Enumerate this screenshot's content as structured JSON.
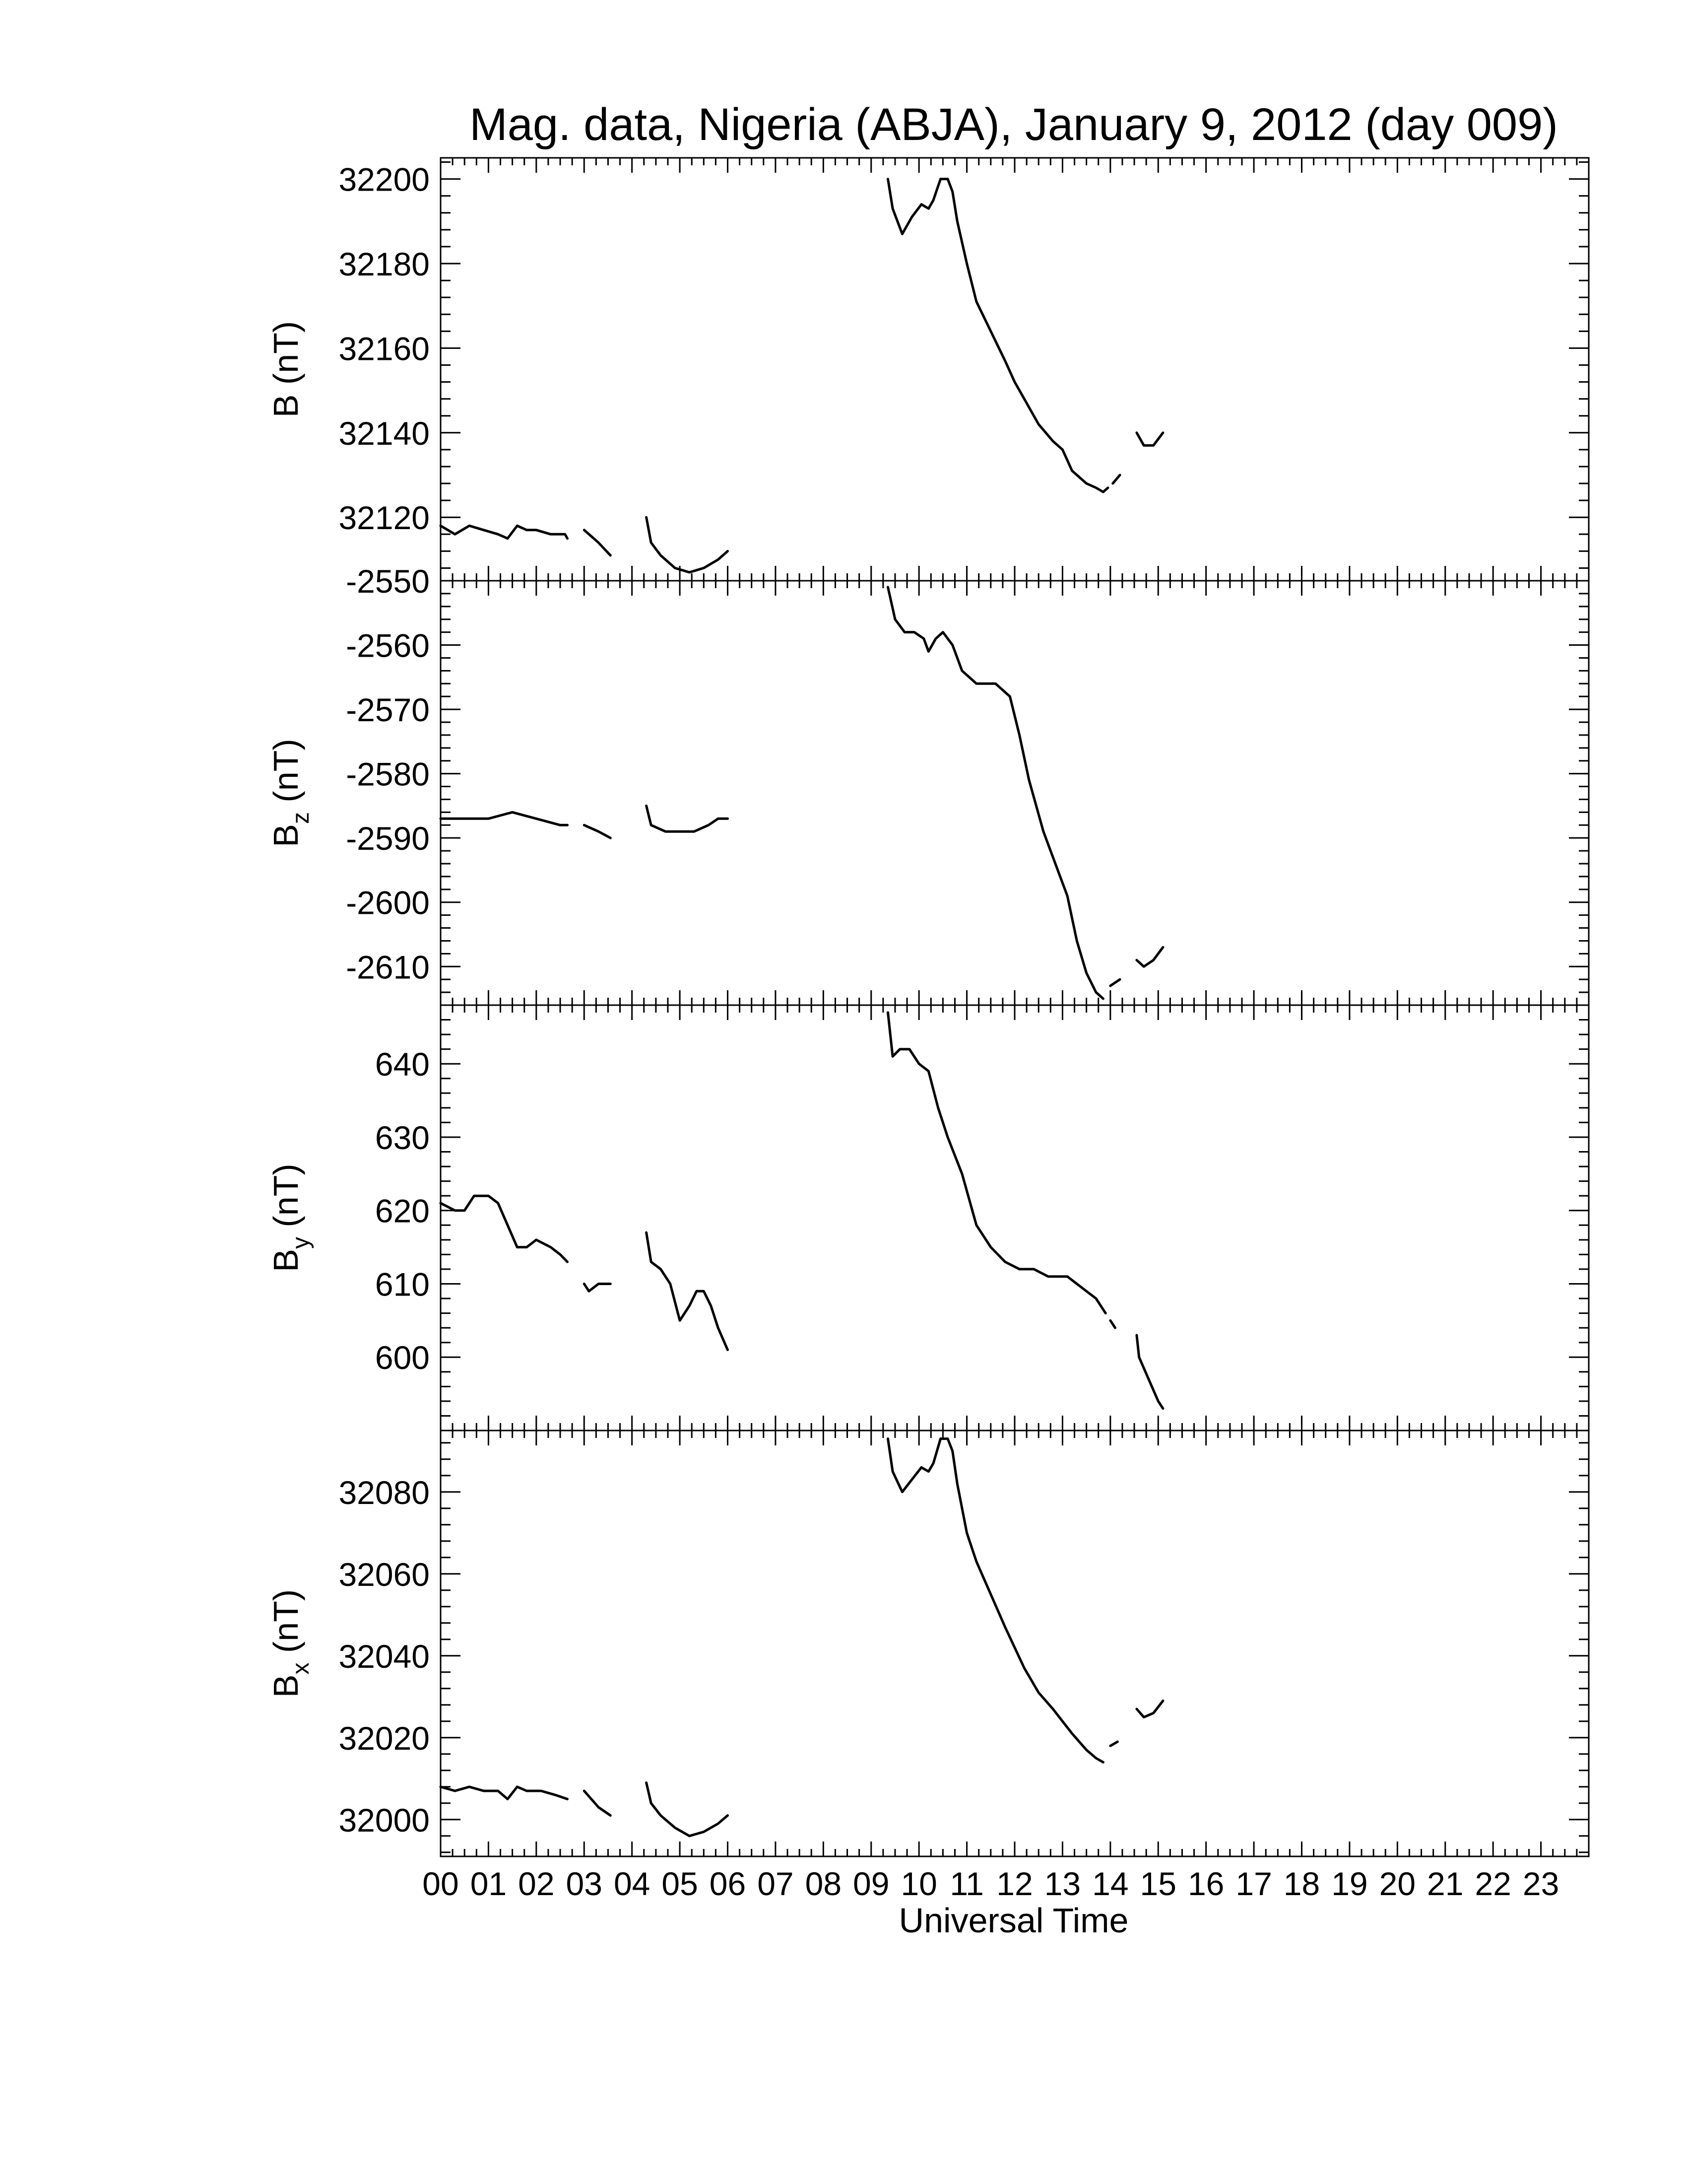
{
  "chart_data": {
    "type": "line",
    "title": "Mag. data, Nigeria (ABJA), January 9, 2012 (day 009)",
    "xlabel": "Universal Time",
    "xlim": [
      0,
      24
    ],
    "x_tick_labels": [
      "00",
      "01",
      "02",
      "03",
      "04",
      "05",
      "06",
      "07",
      "08",
      "09",
      "10",
      "11",
      "12",
      "13",
      "14",
      "15",
      "16",
      "17",
      "18",
      "19",
      "20",
      "21",
      "22",
      "23"
    ],
    "panels": [
      {
        "ylabel_main": "B",
        "ylabel_sub": "",
        "ylabel_unit": " (nT)",
        "ylim": [
          32105,
          32205
        ],
        "yticks": [
          32120,
          32140,
          32160,
          32180,
          32200
        ],
        "y_tick_labels": [
          "32120",
          "32140",
          "32160",
          "32180",
          "32200"
        ],
        "segments": [
          [
            [
              0.0,
              32118
            ],
            [
              0.3,
              32116
            ],
            [
              0.6,
              32118
            ],
            [
              0.9,
              32117
            ],
            [
              1.2,
              32116
            ],
            [
              1.4,
              32115
            ],
            [
              1.6,
              32118
            ],
            [
              1.8,
              32117
            ],
            [
              2.0,
              32117
            ],
            [
              2.3,
              32116
            ],
            [
              2.6,
              32116
            ],
            [
              2.65,
              32115
            ]
          ],
          [
            [
              3.0,
              32117
            ],
            [
              3.3,
              32114
            ],
            [
              3.55,
              32111
            ]
          ],
          [
            [
              4.3,
              32120
            ],
            [
              4.4,
              32114
            ],
            [
              4.6,
              32111
            ],
            [
              4.9,
              32108
            ],
            [
              5.2,
              32107
            ],
            [
              5.5,
              32108
            ],
            [
              5.8,
              32110
            ],
            [
              6.0,
              32112
            ]
          ],
          [
            [
              9.35,
              32200
            ],
            [
              9.45,
              32193
            ],
            [
              9.65,
              32187
            ],
            [
              9.85,
              32191
            ],
            [
              10.05,
              32194
            ],
            [
              10.2,
              32193
            ],
            [
              10.3,
              32195
            ],
            [
              10.45,
              32200
            ],
            [
              10.6,
              32200
            ],
            [
              10.7,
              32197
            ],
            [
              10.8,
              32190
            ],
            [
              11.0,
              32180
            ],
            [
              11.2,
              32171
            ],
            [
              11.5,
              32164
            ],
            [
              11.8,
              32157
            ],
            [
              12.0,
              32152
            ],
            [
              12.2,
              32148
            ],
            [
              12.5,
              32142
            ],
            [
              12.8,
              32138
            ],
            [
              13.0,
              32136
            ],
            [
              13.2,
              32131
            ],
            [
              13.5,
              32128
            ],
            [
              13.7,
              32127
            ],
            [
              13.85,
              32126
            ],
            [
              13.95,
              32127
            ]
          ],
          [
            [
              14.05,
              32128
            ],
            [
              14.2,
              32130
            ]
          ],
          [
            [
              14.55,
              32140
            ],
            [
              14.7,
              32137
            ],
            [
              14.9,
              32137
            ],
            [
              15.1,
              32140
            ]
          ]
        ]
      },
      {
        "ylabel_main": "B",
        "ylabel_sub": "z",
        "ylabel_unit": " (nT)",
        "ylim": [
          -2616,
          -2550
        ],
        "yticks": [
          -2550,
          -2560,
          -2570,
          -2580,
          -2590,
          -2600,
          -2610
        ],
        "y_tick_labels": [
          "-2550",
          "-2560",
          "-2570",
          "-2580",
          "-2590",
          "-2600",
          "-2610"
        ],
        "segments": [
          [
            [
              0.0,
              -2587
            ],
            [
              0.5,
              -2587
            ],
            [
              1.0,
              -2587
            ],
            [
              1.5,
              -2586
            ],
            [
              2.0,
              -2587
            ],
            [
              2.5,
              -2588
            ],
            [
              2.65,
              -2588
            ]
          ],
          [
            [
              3.0,
              -2588
            ],
            [
              3.3,
              -2589
            ],
            [
              3.55,
              -2590
            ]
          ],
          [
            [
              4.3,
              -2585
            ],
            [
              4.4,
              -2588
            ],
            [
              4.7,
              -2589
            ],
            [
              5.0,
              -2589
            ],
            [
              5.3,
              -2589
            ],
            [
              5.6,
              -2588
            ],
            [
              5.8,
              -2587
            ],
            [
              6.0,
              -2587
            ]
          ],
          [
            [
              9.35,
              -2551
            ],
            [
              9.5,
              -2556
            ],
            [
              9.7,
              -2558
            ],
            [
              9.9,
              -2558
            ],
            [
              10.1,
              -2559
            ],
            [
              10.2,
              -2561
            ],
            [
              10.35,
              -2559
            ],
            [
              10.5,
              -2558
            ],
            [
              10.7,
              -2560
            ],
            [
              10.9,
              -2564
            ],
            [
              11.2,
              -2566
            ],
            [
              11.6,
              -2566
            ],
            [
              11.9,
              -2568
            ],
            [
              12.1,
              -2574
            ],
            [
              12.3,
              -2581
            ],
            [
              12.6,
              -2589
            ],
            [
              12.9,
              -2595
            ],
            [
              13.1,
              -2599
            ],
            [
              13.3,
              -2606
            ],
            [
              13.5,
              -2611
            ],
            [
              13.7,
              -2614
            ],
            [
              13.85,
              -2615
            ]
          ],
          [
            [
              14.0,
              -2613
            ],
            [
              14.2,
              -2612
            ]
          ],
          [
            [
              14.55,
              -2609
            ],
            [
              14.7,
              -2610
            ],
            [
              14.9,
              -2609
            ],
            [
              15.1,
              -2607
            ]
          ]
        ]
      },
      {
        "ylabel_main": "B",
        "ylabel_sub": "y",
        "ylabel_unit": " (nT)",
        "ylim": [
          590,
          648
        ],
        "yticks": [
          600,
          610,
          620,
          630,
          640
        ],
        "y_tick_labels": [
          "600",
          "610",
          "620",
          "630",
          "640"
        ],
        "segments": [
          [
            [
              0.0,
              621
            ],
            [
              0.3,
              620
            ],
            [
              0.5,
              620
            ],
            [
              0.7,
              622
            ],
            [
              1.0,
              622
            ],
            [
              1.2,
              621
            ],
            [
              1.4,
              618
            ],
            [
              1.6,
              615
            ],
            [
              1.8,
              615
            ],
            [
              2.0,
              616
            ],
            [
              2.3,
              615
            ],
            [
              2.5,
              614
            ],
            [
              2.65,
              613
            ]
          ],
          [
            [
              3.0,
              610
            ],
            [
              3.1,
              609
            ],
            [
              3.3,
              610
            ],
            [
              3.55,
              610
            ]
          ],
          [
            [
              4.3,
              617
            ],
            [
              4.4,
              613
            ],
            [
              4.6,
              612
            ],
            [
              4.8,
              610
            ],
            [
              5.0,
              605
            ],
            [
              5.2,
              607
            ],
            [
              5.35,
              609
            ],
            [
              5.5,
              609
            ],
            [
              5.65,
              607
            ],
            [
              5.8,
              604
            ],
            [
              6.0,
              601
            ]
          ],
          [
            [
              9.35,
              647
            ],
            [
              9.45,
              641
            ],
            [
              9.6,
              642
            ],
            [
              9.8,
              642
            ],
            [
              10.0,
              640
            ],
            [
              10.2,
              639
            ],
            [
              10.4,
              634
            ],
            [
              10.6,
              630
            ],
            [
              10.9,
              625
            ],
            [
              11.2,
              618
            ],
            [
              11.5,
              615
            ],
            [
              11.8,
              613
            ],
            [
              12.1,
              612
            ],
            [
              12.4,
              612
            ],
            [
              12.7,
              611
            ],
            [
              12.9,
              611
            ],
            [
              13.1,
              611
            ],
            [
              13.3,
              610
            ],
            [
              13.5,
              609
            ],
            [
              13.7,
              608
            ],
            [
              13.9,
              606
            ]
          ],
          [
            [
              14.0,
              605
            ],
            [
              14.1,
              604
            ]
          ],
          [
            [
              14.55,
              603
            ],
            [
              14.6,
              600
            ],
            [
              14.8,
              597
            ],
            [
              15.0,
              594
            ],
            [
              15.1,
              593
            ]
          ]
        ]
      },
      {
        "ylabel_main": "B",
        "ylabel_sub": "x",
        "ylabel_unit": " (nT)",
        "ylim": [
          31991,
          32095
        ],
        "yticks": [
          32000,
          32020,
          32040,
          32060,
          32080
        ],
        "y_tick_labels": [
          "32000",
          "32020",
          "32040",
          "32060",
          "32080"
        ],
        "segments": [
          [
            [
              0.0,
              32008
            ],
            [
              0.3,
              32007
            ],
            [
              0.6,
              32008
            ],
            [
              0.9,
              32007
            ],
            [
              1.2,
              32007
            ],
            [
              1.4,
              32005
            ],
            [
              1.6,
              32008
            ],
            [
              1.8,
              32007
            ],
            [
              2.1,
              32007
            ],
            [
              2.4,
              32006
            ],
            [
              2.65,
              32005
            ]
          ],
          [
            [
              3.0,
              32007
            ],
            [
              3.3,
              32003
            ],
            [
              3.55,
              32001
            ]
          ],
          [
            [
              4.3,
              32009
            ],
            [
              4.4,
              32004
            ],
            [
              4.6,
              32001
            ],
            [
              4.9,
              31998
            ],
            [
              5.2,
              31996
            ],
            [
              5.5,
              31997
            ],
            [
              5.8,
              31999
            ],
            [
              6.0,
              32001
            ]
          ],
          [
            [
              9.35,
              32093
            ],
            [
              9.45,
              32085
            ],
            [
              9.65,
              32080
            ],
            [
              9.85,
              32083
            ],
            [
              10.05,
              32086
            ],
            [
              10.2,
              32085
            ],
            [
              10.3,
              32087
            ],
            [
              10.45,
              32093
            ],
            [
              10.6,
              32093
            ],
            [
              10.7,
              32090
            ],
            [
              10.8,
              32082
            ],
            [
              11.0,
              32070
            ],
            [
              11.2,
              32063
            ],
            [
              11.5,
              32055
            ],
            [
              11.8,
              32047
            ],
            [
              12.0,
              32042
            ],
            [
              12.2,
              32037
            ],
            [
              12.5,
              32031
            ],
            [
              12.8,
              32027
            ],
            [
              13.0,
              32024
            ],
            [
              13.2,
              32021
            ],
            [
              13.5,
              32017
            ],
            [
              13.7,
              32015
            ],
            [
              13.85,
              32014
            ]
          ],
          [
            [
              14.0,
              32018
            ],
            [
              14.15,
              32019
            ]
          ],
          [
            [
              14.55,
              32027
            ],
            [
              14.7,
              32025
            ],
            [
              14.9,
              32026
            ],
            [
              15.1,
              32029
            ]
          ]
        ]
      }
    ]
  }
}
